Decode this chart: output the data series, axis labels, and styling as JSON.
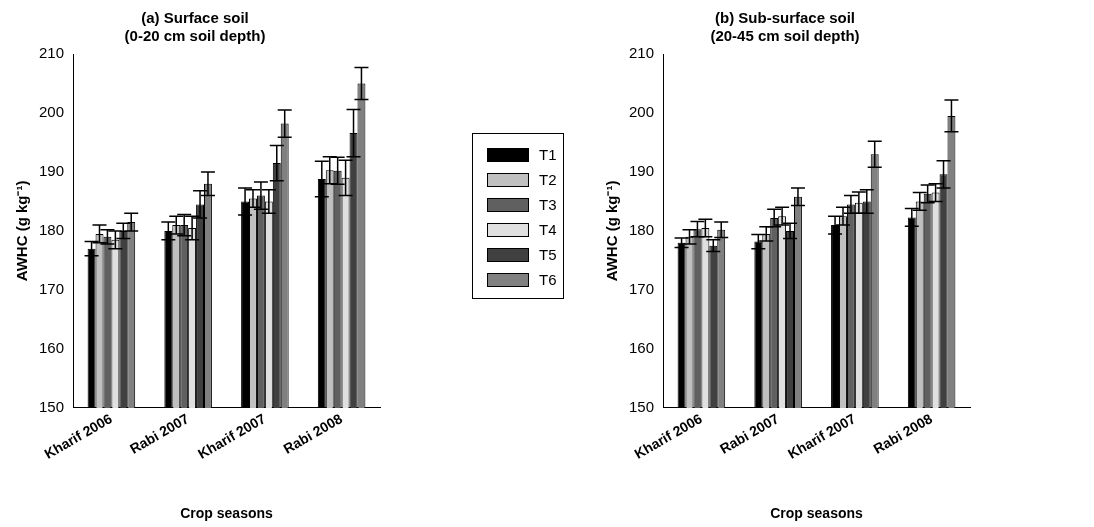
{
  "chart_data": [
    {
      "type": "bar",
      "title": "(a) Surface soil\n(0-20 cm soil depth)",
      "xlabel": "Crop seasons",
      "ylabel": "AWHC (g kg⁻¹)",
      "categories": [
        "Kharif 2006",
        "Rabi 2007",
        "Kharif 2007",
        "Rabi 2008"
      ],
      "ylim": [
        150,
        210
      ],
      "yticks": [
        150,
        160,
        170,
        180,
        190,
        200,
        210
      ],
      "grid": false,
      "legend": "right",
      "series": [
        {
          "name": "T1",
          "color": "#000000",
          "values": [
            177,
            180,
            185,
            188.8
          ],
          "errors": [
            1.2,
            1.5,
            2.3,
            3
          ]
        },
        {
          "name": "T2",
          "color": "#c0c0c0",
          "values": [
            179.5,
            181,
            185.5,
            190.3
          ],
          "errors": [
            1.5,
            1.5,
            1.5,
            2.3
          ]
        },
        {
          "name": "T3",
          "color": "#606060",
          "values": [
            179,
            181,
            186,
            190.2
          ],
          "errors": [
            1.2,
            1.8,
            2.3,
            2.3
          ]
        },
        {
          "name": "T4",
          "color": "#e0e0e0",
          "values": [
            178.5,
            180.5,
            185,
            189
          ],
          "errors": [
            1.5,
            2,
            2,
            3
          ]
        },
        {
          "name": "T5",
          "color": "#404040",
          "values": [
            180,
            184.5,
            191.5,
            196.6
          ],
          "errors": [
            1.3,
            2.3,
            3,
            4
          ]
        },
        {
          "name": "T6",
          "color": "#808080",
          "values": [
            181.5,
            188,
            198.2,
            205
          ],
          "errors": [
            1.5,
            2,
            2.3,
            2.7
          ]
        }
      ]
    },
    {
      "type": "bar",
      "title": "(b) Sub-surface soil\n(20-45 cm soil depth)",
      "xlabel": "Crop seasons",
      "ylabel": "AWHC (g kg⁻¹)",
      "categories": [
        "Kharif 2006",
        "Rabi 2007",
        "Kharif 2007",
        "Rabi 2008"
      ],
      "ylim": [
        150,
        210
      ],
      "yticks": [
        150,
        160,
        170,
        180,
        190,
        200,
        210
      ],
      "grid": false,
      "series": [
        {
          "color": "#000000",
          "values": [
            178,
            178.2,
            181,
            182.3
          ],
          "errors": [
            0.8,
            1.2,
            1.5,
            1.5
          ]
        },
        {
          "color": "#c0c0c0",
          "values": [
            179,
            179.5,
            182.5,
            185
          ],
          "errors": [
            1.2,
            1.2,
            1.5,
            1.5
          ]
        },
        {
          "color": "#606060",
          "values": [
            180.3,
            182.2,
            184.5,
            186.3
          ],
          "errors": [
            1.3,
            1.5,
            1.5,
            1.5
          ]
        },
        {
          "color": "#e0e0e0",
          "values": [
            180.5,
            182.5,
            184.8,
            186.5
          ],
          "errors": [
            1.5,
            1.5,
            1.8,
            1.5
          ]
        },
        {
          "color": "#404040",
          "values": [
            177.5,
            180,
            185,
            189.6
          ],
          "errors": [
            1,
            1.3,
            2,
            2.3
          ]
        },
        {
          "color": "#808080",
          "values": [
            180.2,
            185.8,
            193,
            199.5
          ],
          "errors": [
            1.3,
            1.5,
            2.2,
            2.7
          ]
        }
      ]
    }
  ]
}
